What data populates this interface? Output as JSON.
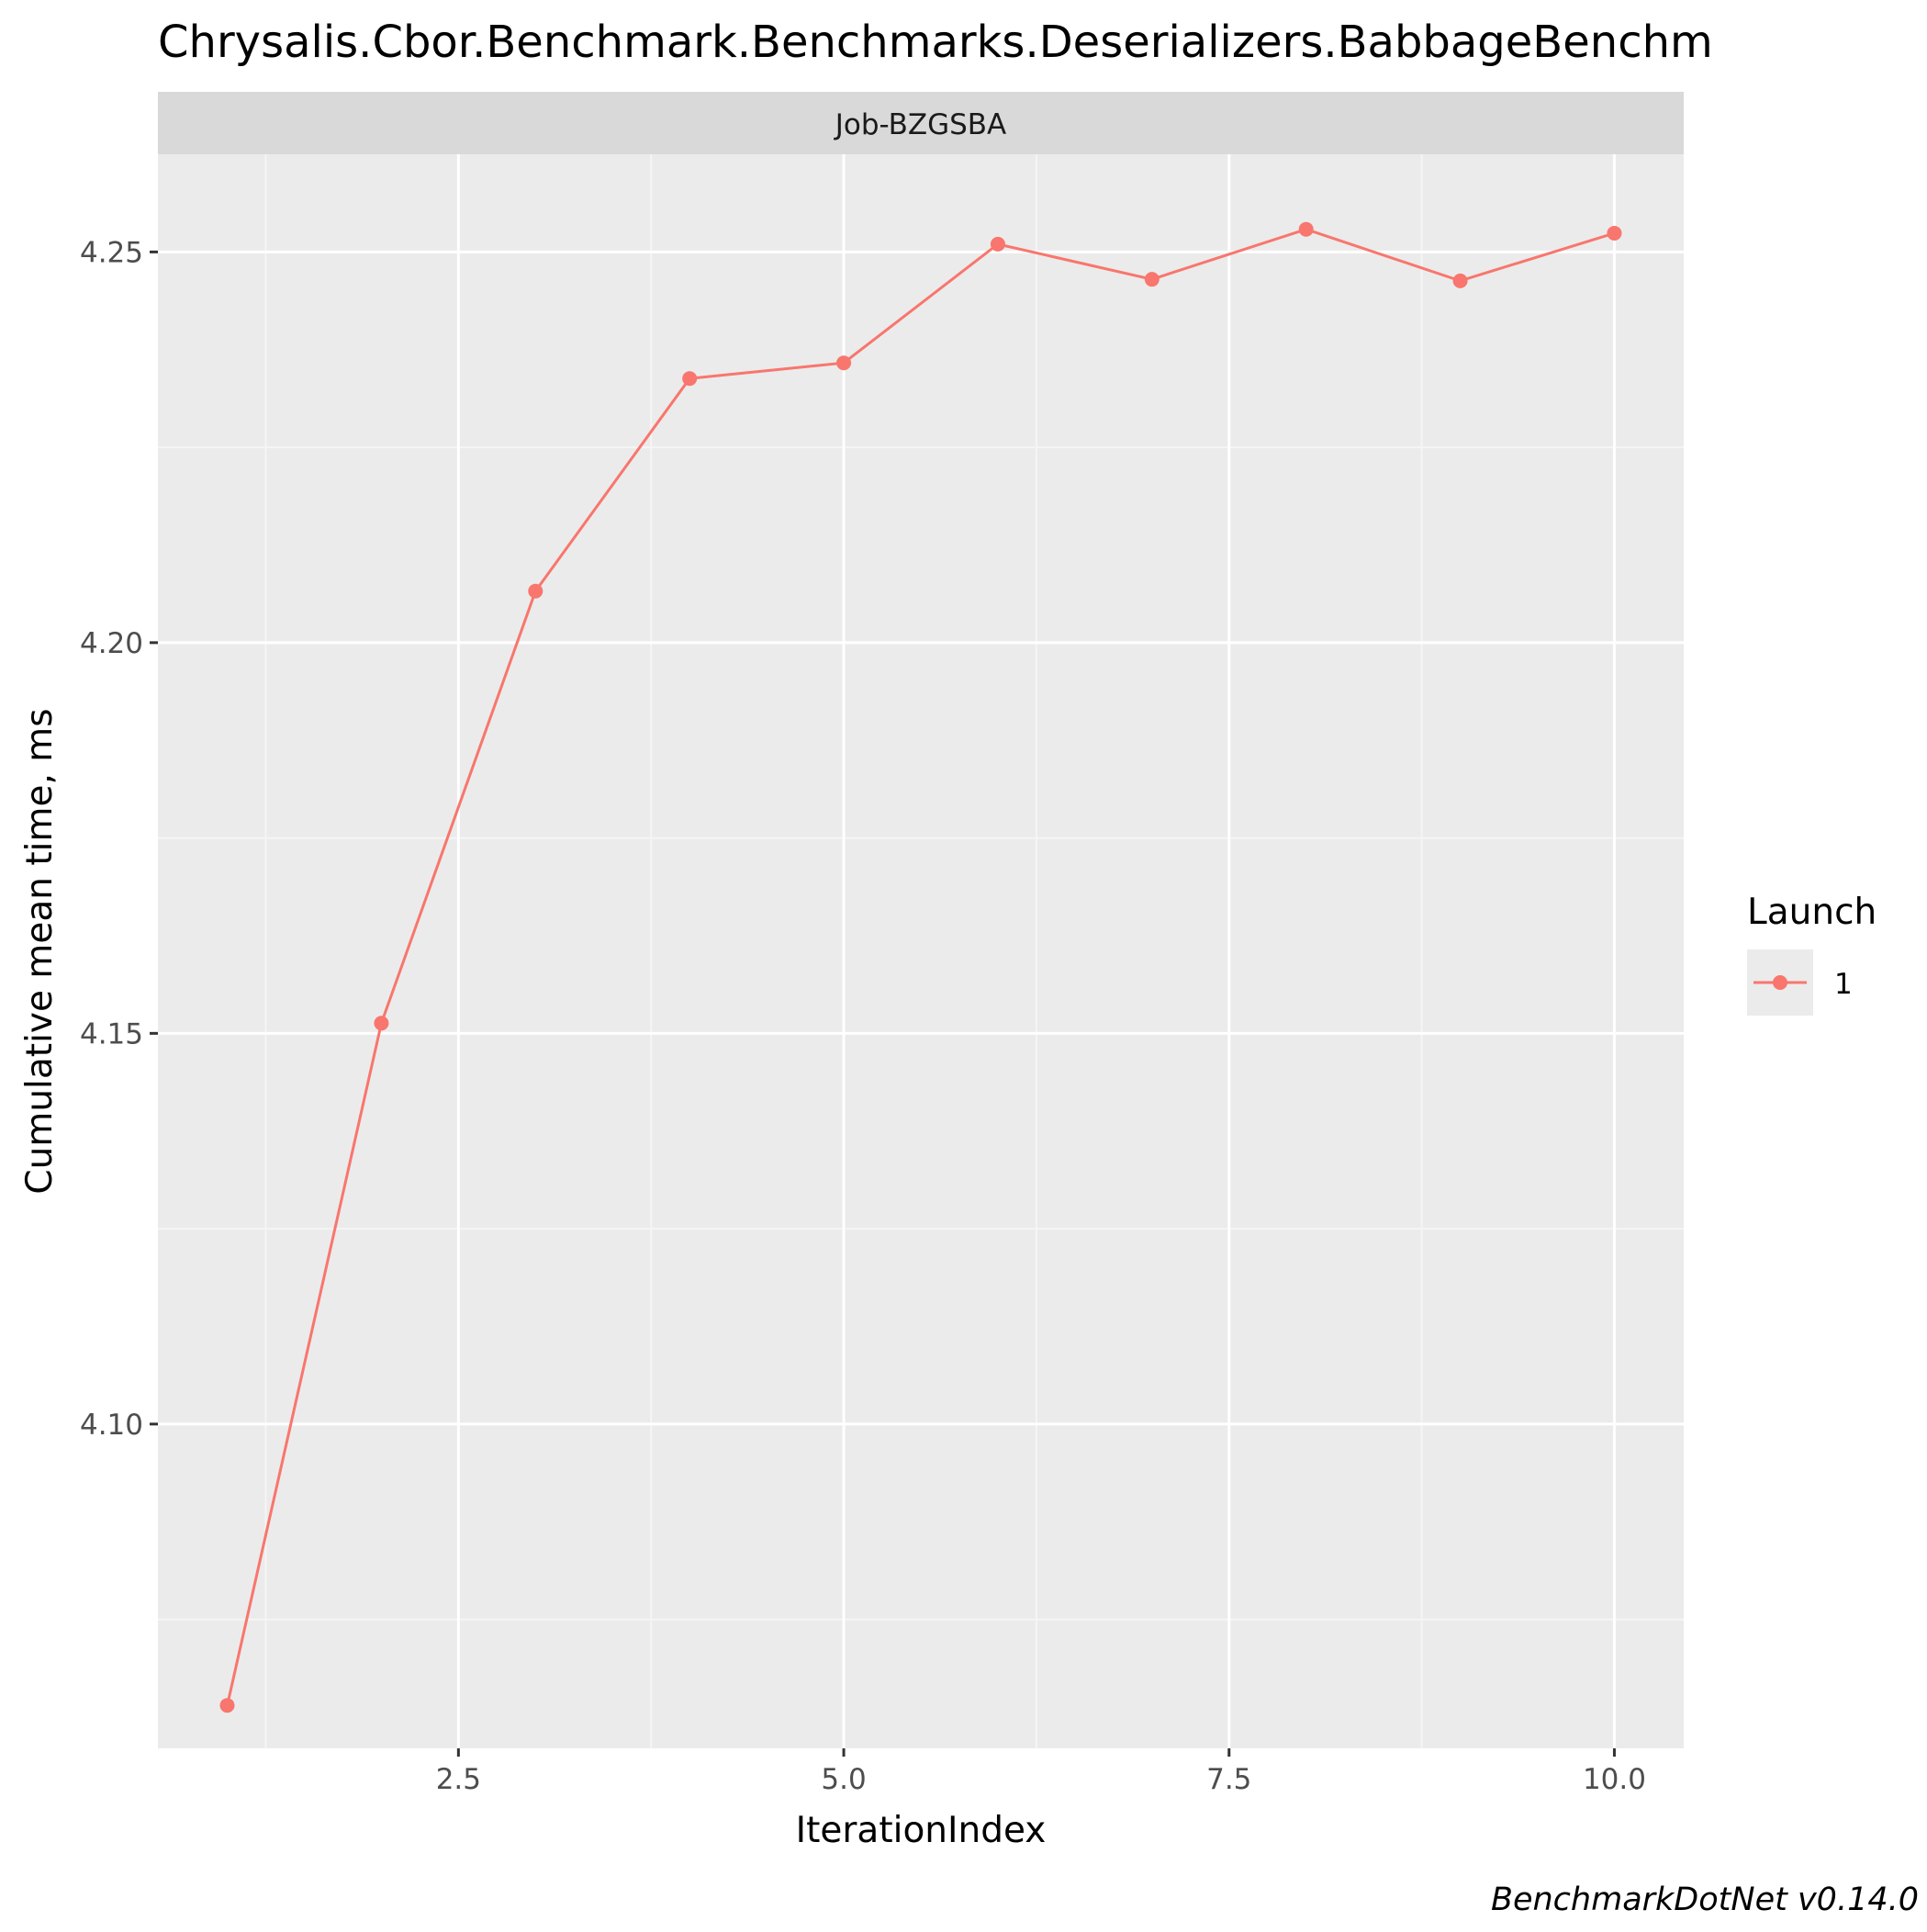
{
  "chart_data": {
    "type": "line",
    "title": "Chrysalis.Cbor.Benchmark.Benchmarks.Deserializers.BabbageBenchm",
    "facet_label": "Job-BZGSBA",
    "xlabel": "IterationIndex",
    "ylabel": "Cumulative mean time, ms",
    "xlim": [
      0.55,
      10.45
    ],
    "ylim": [
      4.0585,
      4.2625
    ],
    "x_ticks": [
      2.5,
      5.0,
      7.5,
      10.0
    ],
    "x_tick_labels": [
      "2.5",
      "5.0",
      "7.5",
      "10.0"
    ],
    "y_ticks": [
      4.1,
      4.15,
      4.2,
      4.25
    ],
    "y_tick_labels": [
      "4.10",
      "4.15",
      "4.20",
      "4.25"
    ],
    "x_minor_ticks": [
      1.25,
      3.75,
      6.25,
      8.75
    ],
    "y_minor_ticks": [
      4.075,
      4.125,
      4.175,
      4.225
    ],
    "grid": true,
    "legend": {
      "title": "Launch",
      "position": "right",
      "entries": [
        "1"
      ]
    },
    "series": [
      {
        "name": "1",
        "color": "#F8766D",
        "x": [
          1,
          2,
          3,
          4,
          5,
          6,
          7,
          8,
          9,
          10
        ],
        "values": [
          4.064,
          4.1513,
          4.2066,
          4.2338,
          4.2358,
          4.251,
          4.2465,
          4.2529,
          4.2463,
          4.2524
        ]
      }
    ],
    "caption": "BenchmarkDotNet v0.14.0"
  },
  "colors": {
    "panel_background": "#EBEBEB",
    "strip_background": "#D9D9D9",
    "grid_major": "#FFFFFF",
    "grid_minor": "#F5F5F5"
  }
}
